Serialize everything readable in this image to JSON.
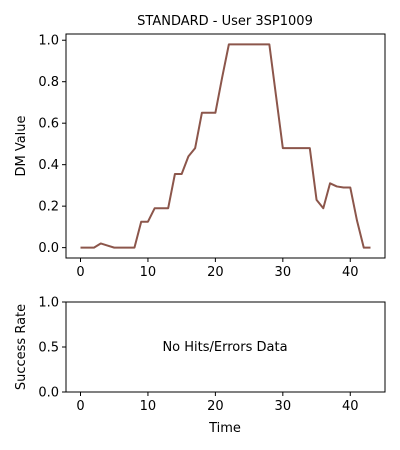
{
  "chart_data": [
    {
      "type": "line",
      "title": "STANDARD - User 3SP1009",
      "xlabel": "",
      "ylabel": "DM Value",
      "xlim": [
        -2.15,
        45.15
      ],
      "ylim": [
        -0.05,
        1.03
      ],
      "xticks": [
        0,
        10,
        20,
        30,
        40
      ],
      "yticks": [
        0.0,
        0.2,
        0.4,
        0.6,
        0.8,
        1.0
      ],
      "ytick_labels": [
        "0.0",
        "0.2",
        "0.4",
        "0.6",
        "0.8",
        "1.0"
      ],
      "grid": false,
      "series": [
        {
          "color": "#8c564b",
          "x": [
            0,
            1,
            2,
            3,
            4,
            5,
            6,
            7,
            8,
            9,
            10,
            11,
            12,
            13,
            14,
            15,
            16,
            17,
            18,
            19,
            20,
            21,
            22,
            23,
            24,
            25,
            26,
            27,
            28,
            29,
            30,
            31,
            32,
            33,
            34,
            35,
            36,
            37,
            38,
            39,
            40,
            41,
            42,
            43
          ],
          "y": [
            0.0,
            0.0,
            0.0,
            0.02,
            0.01,
            0.0,
            0.0,
            0.0,
            0.0,
            0.125,
            0.125,
            0.19,
            0.19,
            0.19,
            0.355,
            0.355,
            0.44,
            0.48,
            0.65,
            0.65,
            0.65,
            0.82,
            0.98,
            0.98,
            0.98,
            0.98,
            0.98,
            0.98,
            0.98,
            0.73,
            0.48,
            0.48,
            0.48,
            0.48,
            0.48,
            0.23,
            0.19,
            0.31,
            0.295,
            0.29,
            0.29,
            0.13,
            0.0,
            0.0
          ]
        }
      ]
    },
    {
      "type": "line",
      "title": "",
      "xlabel": "Time",
      "ylabel": "Success Rate",
      "xlim": [
        -2.15,
        45.15
      ],
      "ylim": [
        0.0,
        1.0
      ],
      "xticks": [
        0,
        10,
        20,
        30,
        40
      ],
      "yticks": [
        0.0,
        0.5,
        1.0
      ],
      "ytick_labels": [
        "0.0",
        "0.5",
        "1.0"
      ],
      "grid": false,
      "annotation": "No Hits/Errors Data",
      "series": []
    }
  ]
}
